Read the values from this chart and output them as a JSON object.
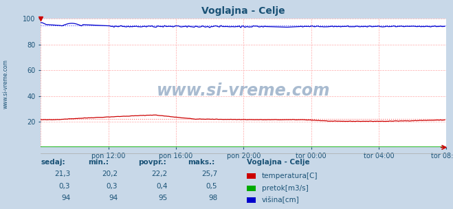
{
  "title": "Voglajna - Celje",
  "title_color": "#1a5276",
  "bg_color": "#c8d8e8",
  "plot_bg_color": "#ffffff",
  "grid_color": "#ffaaaa",
  "xticklabels": [
    "pon 12:00",
    "pon 16:00",
    "pon 20:00",
    "tor 00:00",
    "tor 04:00",
    "tor 08:00"
  ],
  "yticks": [
    0,
    20,
    40,
    60,
    80,
    100
  ],
  "ylim": [
    0,
    100
  ],
  "xlim": [
    0,
    287
  ],
  "n_points": 288,
  "temp_color": "#cc0000",
  "temp_avg_color": "#ff6666",
  "flow_color": "#00aa00",
  "flow_avg_color": "#44cc44",
  "height_color": "#0000cc",
  "height_avg_color": "#4444ff",
  "watermark": "www.si-vreme.com",
  "watermark_color": "#9ab0c8",
  "sidebar_text": "www.si-vreme.com",
  "sidebar_color": "#1a5276",
  "legend_title": "Voglajna - Celje",
  "legend_items": [
    "temperatura[C]",
    "pretok[m3/s]",
    "višina[cm]"
  ],
  "legend_colors": [
    "#cc0000",
    "#00aa00",
    "#0000cc"
  ],
  "table_headers": [
    "sedaj:",
    "min.:",
    "povpr.:",
    "maks.:"
  ],
  "table_values": [
    [
      "21,3",
      "20,2",
      "22,2",
      "25,7"
    ],
    [
      "0,3",
      "0,3",
      "0,4",
      "0,5"
    ],
    [
      "94",
      "94",
      "95",
      "98"
    ]
  ],
  "table_color": "#1a5276",
  "temp_avg": 22.2,
  "flow_avg": 0.4,
  "height_avg": 95.0
}
